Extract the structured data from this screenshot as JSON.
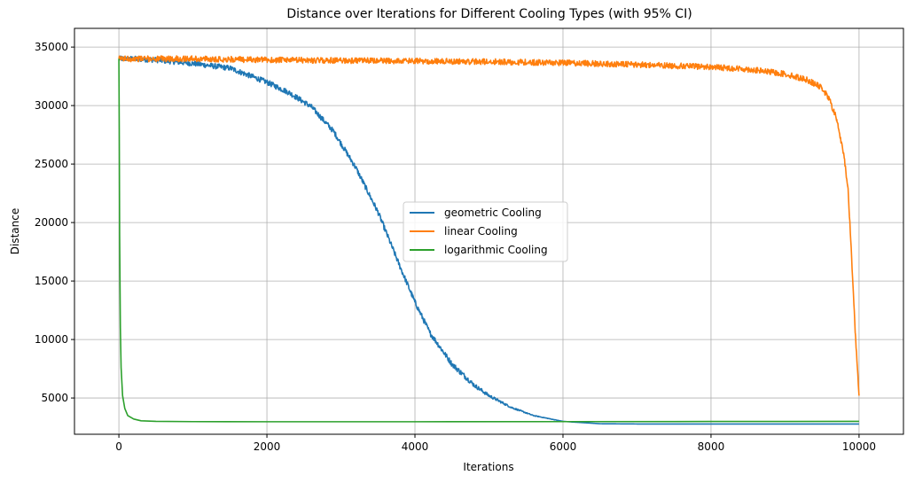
{
  "chart_data": {
    "type": "line",
    "title": "Distance over Iterations for Different Cooling Types (with 95% CI)",
    "xlabel": "Iterations",
    "ylabel": "Distance",
    "xlim": [
      -600,
      10600
    ],
    "ylim": [
      1900,
      36600
    ],
    "xticks": [
      0,
      2000,
      4000,
      6000,
      8000,
      10000
    ],
    "yticks": [
      5000,
      10000,
      15000,
      20000,
      25000,
      30000,
      35000
    ],
    "grid": true,
    "legend_position": "center",
    "series": [
      {
        "name": "geometric Cooling",
        "color": "#1f77b4",
        "noise": 230,
        "x": [
          0,
          200,
          500,
          1000,
          1500,
          2000,
          2300,
          2600,
          2900,
          3200,
          3500,
          3800,
          4000,
          4200,
          4500,
          4800,
          5000,
          5300,
          5600,
          6000,
          6500,
          7000,
          8000,
          9000,
          10000
        ],
        "y": [
          34000,
          34000,
          33900,
          33600,
          33200,
          32000,
          31100,
          29900,
          27800,
          24700,
          20900,
          16200,
          13200,
          10600,
          7900,
          6100,
          5200,
          4200,
          3500,
          3000,
          2800,
          2780,
          2780,
          2780,
          2780
        ]
      },
      {
        "name": "linear Cooling",
        "color": "#ff7f0e",
        "noise": 250,
        "x": [
          0,
          1000,
          2000,
          3000,
          4000,
          5000,
          6000,
          7000,
          8000,
          8500,
          9000,
          9300,
          9500,
          9600,
          9700,
          9800,
          9850,
          9900,
          9950,
          10000
        ],
        "y": [
          34000,
          34000,
          33900,
          33850,
          33800,
          33750,
          33650,
          33500,
          33300,
          33100,
          32700,
          32200,
          31500,
          30500,
          28800,
          25500,
          23000,
          17000,
          10500,
          5200
        ]
      },
      {
        "name": "logarithmic Cooling",
        "color": "#2ca02c",
        "noise": 0,
        "x": [
          0,
          5,
          10,
          20,
          30,
          50,
          80,
          120,
          200,
          300,
          500,
          1000,
          2000,
          4000,
          6000,
          8000,
          10000
        ],
        "y": [
          34000,
          28000,
          19000,
          11000,
          7600,
          5200,
          4100,
          3500,
          3200,
          3050,
          3000,
          2980,
          2970,
          2970,
          2980,
          2990,
          3000
        ]
      }
    ]
  }
}
